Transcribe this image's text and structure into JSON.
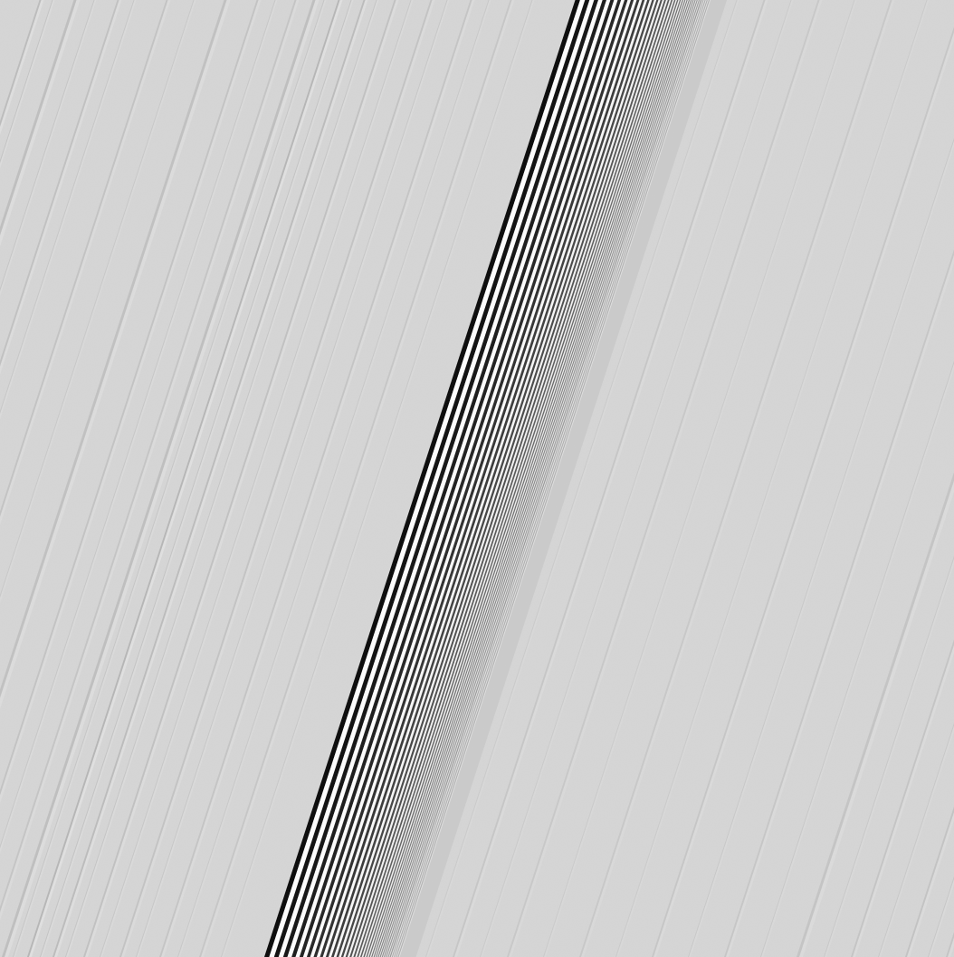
{
  "image": {
    "subject": "planetary-ring-density-wave",
    "palette": {
      "background": "#d6d6d6",
      "dark_band": "#050505",
      "bright_band": "#ffffff",
      "mid_band": "#9a9a9a"
    }
  }
}
